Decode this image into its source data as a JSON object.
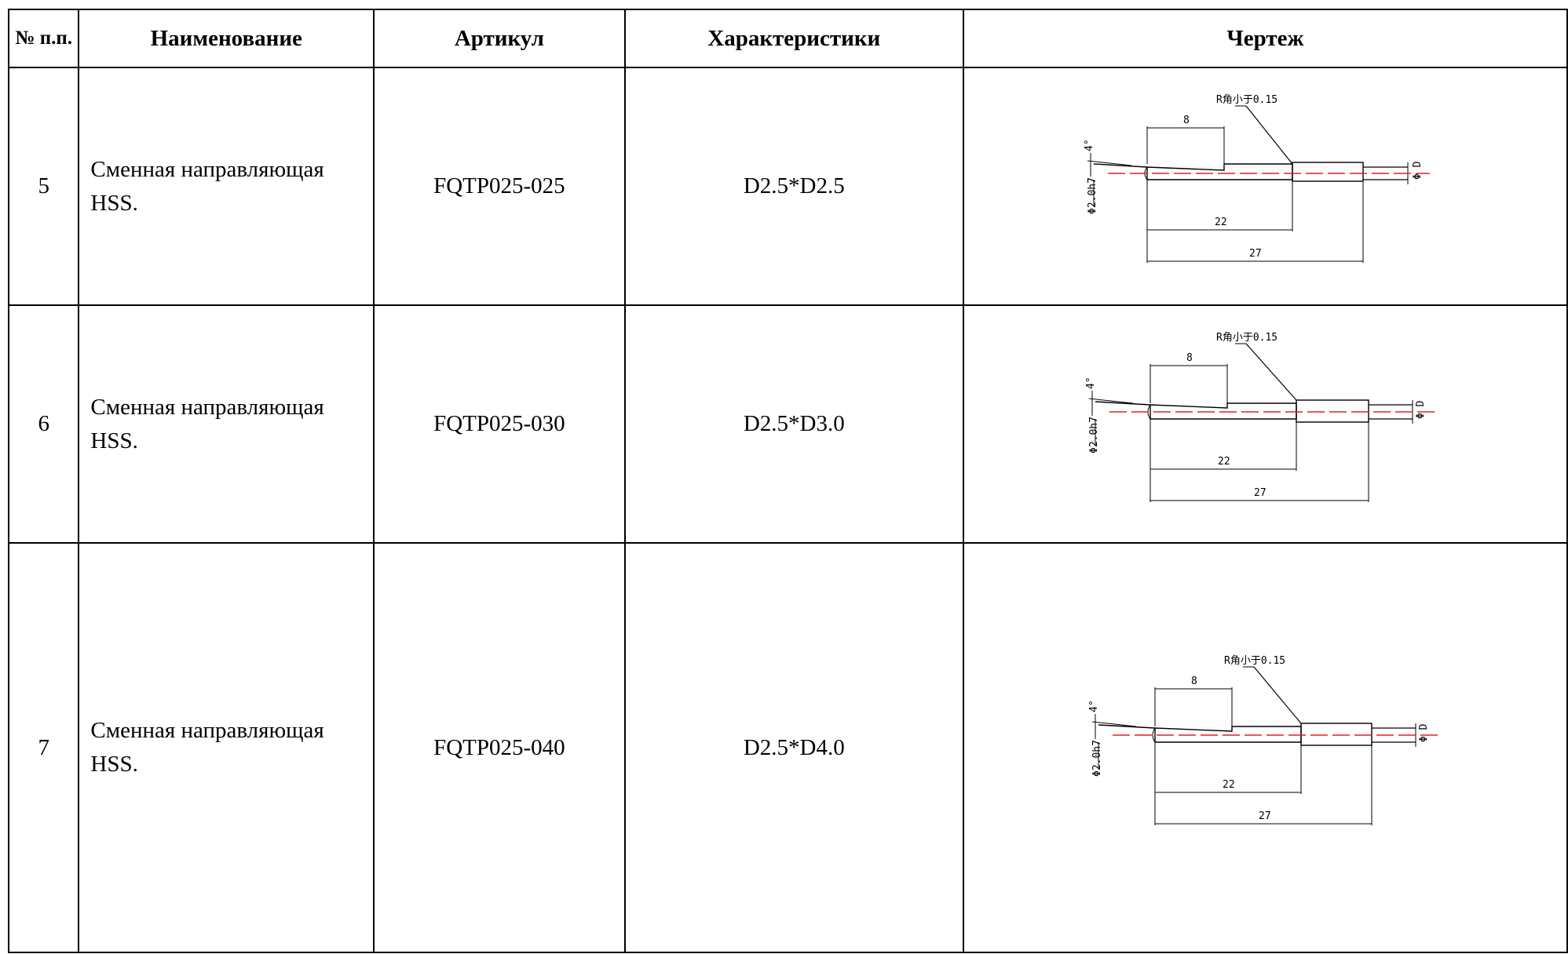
{
  "table": {
    "headers": {
      "num": "№ п.п.",
      "name": "Наименование",
      "article": "Артикул",
      "characteristics": "Характеристики",
      "drawing": "Чертеж"
    },
    "rows": [
      {
        "num": "5",
        "name": "Сменная направляющая HSS.",
        "article": "FQTP025-025",
        "characteristics": "D2.5*D2.5",
        "drawing": {
          "label_r": "R角小于0.15",
          "dim_8": "8",
          "dim_22": "22",
          "dim_27": "27",
          "dim_shank": "Φ2.0h7",
          "dim_d": "Φ D",
          "angle": "4°"
        }
      },
      {
        "num": "6",
        "name": "Сменная направляющая HSS.",
        "article": "FQTP025-030",
        "characteristics": "D2.5*D3.0",
        "drawing": {
          "label_r": "R角小于0.15",
          "dim_8": "8",
          "dim_22": "22",
          "dim_27": "27",
          "dim_shank": "Φ2.0h7",
          "dim_d": "Φ D",
          "angle": "4°"
        }
      },
      {
        "num": "7",
        "name": "Сменная направляющая HSS.",
        "article": "FQTP025-040",
        "characteristics": "D2.5*D4.0",
        "drawing": {
          "label_r": "R角小于0.15",
          "dim_8": "8",
          "dim_22": "22",
          "dim_27": "27",
          "dim_shank": "Φ2.0h7",
          "dim_d": "Φ D",
          "angle": "4°"
        }
      }
    ]
  },
  "colors": {
    "line": "#000000",
    "centerline": "#e02020"
  }
}
